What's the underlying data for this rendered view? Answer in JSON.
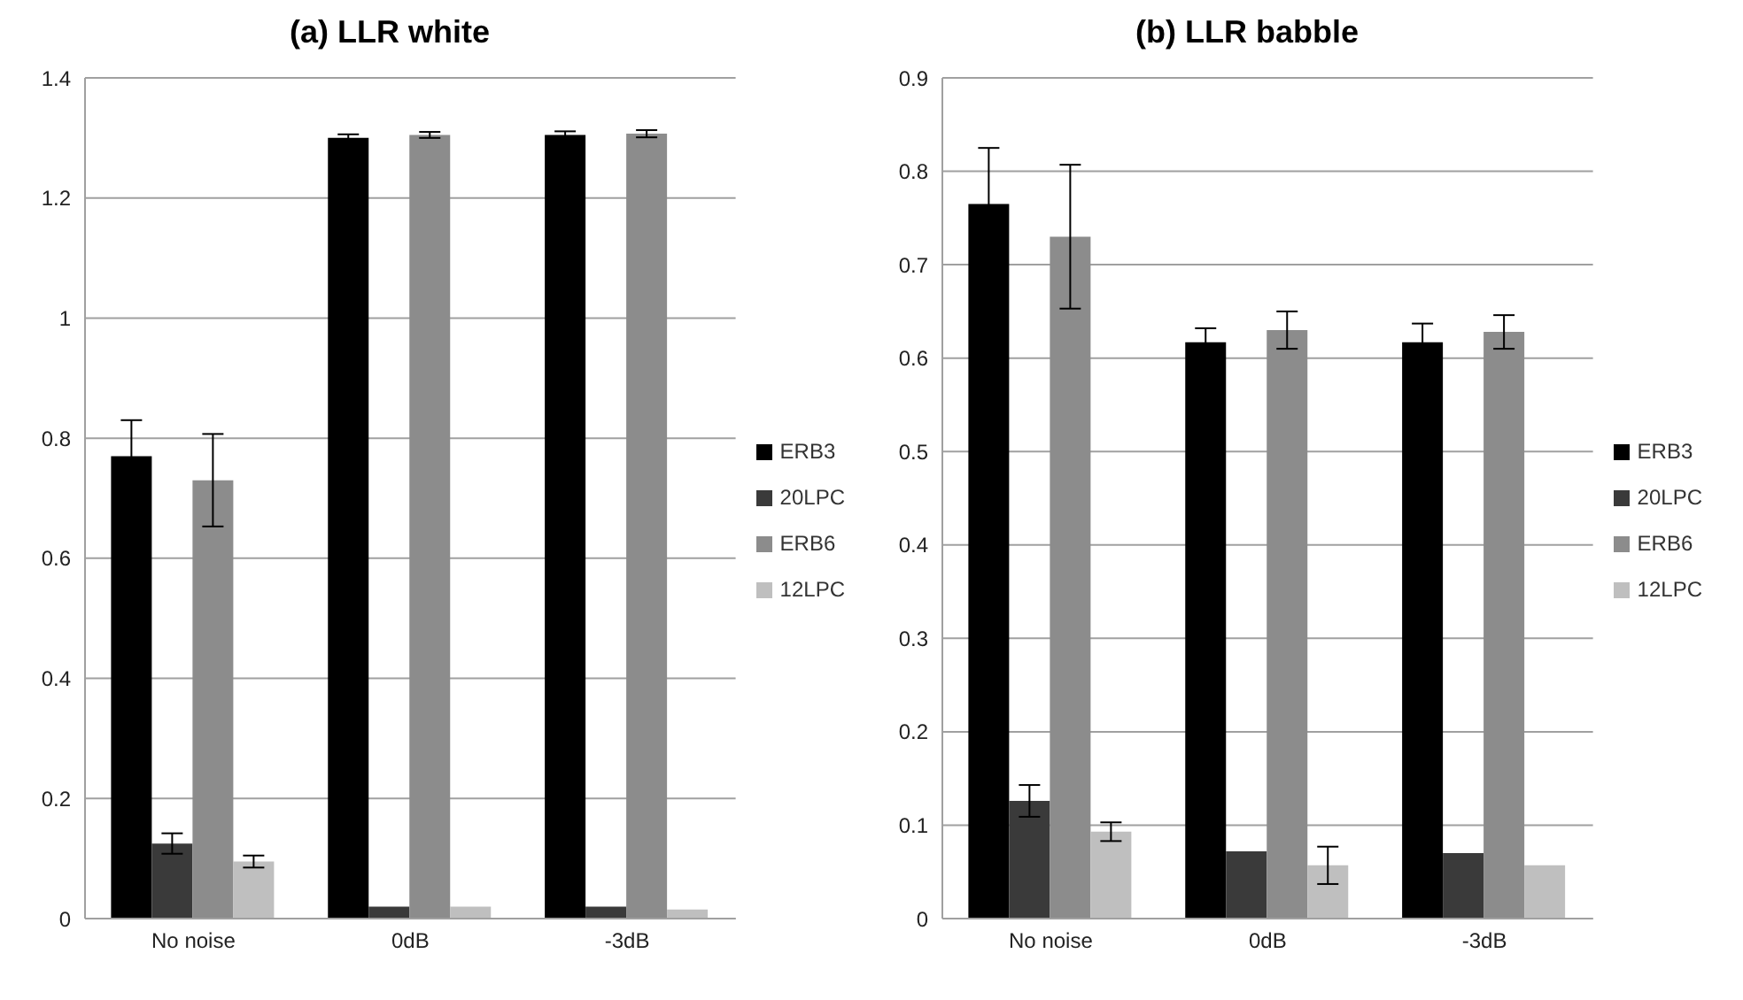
{
  "chart_data": [
    {
      "type": "bar",
      "title": "(a) LLR white",
      "categories": [
        "No noise",
        "0dB",
        "-3dB"
      ],
      "ylim": [
        0,
        1.4
      ],
      "yticks": [
        0,
        0.2,
        0.4,
        0.6,
        0.8,
        1,
        1.2,
        1.4
      ],
      "grid": "y",
      "legend": "right",
      "series": [
        {
          "name": "ERB3",
          "color": "#000000",
          "values": [
            0.77,
            1.3,
            1.305
          ],
          "errors": [
            0.06,
            0.006,
            0.006
          ]
        },
        {
          "name": "20LPC",
          "color": "#3a3a3a",
          "values": [
            0.125,
            0.02,
            0.02
          ],
          "errors": [
            0.017,
            null,
            null
          ]
        },
        {
          "name": "ERB6",
          "color": "#8c8c8c",
          "values": [
            0.73,
            1.305,
            1.307
          ],
          "errors": [
            0.077,
            0.005,
            0.006
          ]
        },
        {
          "name": "12LPC",
          "color": "#bfbfbf",
          "values": [
            0.095,
            0.02,
            0.015
          ],
          "errors": [
            0.01,
            null,
            null
          ]
        }
      ]
    },
    {
      "type": "bar",
      "title": "(b) LLR babble",
      "categories": [
        "No noise",
        "0dB",
        "-3dB"
      ],
      "ylim": [
        0,
        0.9
      ],
      "yticks": [
        0,
        0.1,
        0.2,
        0.3,
        0.4,
        0.5,
        0.6,
        0.7,
        0.8,
        0.9
      ],
      "grid": "y",
      "legend": "right",
      "series": [
        {
          "name": "ERB3",
          "color": "#000000",
          "values": [
            0.765,
            0.617,
            0.617
          ],
          "errors": [
            0.06,
            0.015,
            0.02
          ]
        },
        {
          "name": "20LPC",
          "color": "#3a3a3a",
          "values": [
            0.126,
            0.072,
            0.07
          ],
          "errors": [
            0.017,
            null,
            null
          ]
        },
        {
          "name": "ERB6",
          "color": "#8c8c8c",
          "values": [
            0.73,
            0.63,
            0.628
          ],
          "errors": [
            0.077,
            0.02,
            0.018
          ]
        },
        {
          "name": "12LPC",
          "color": "#bfbfbf",
          "values": [
            0.093,
            0.057,
            0.057
          ],
          "errors": [
            0.01,
            0.02,
            null
          ]
        }
      ]
    }
  ]
}
